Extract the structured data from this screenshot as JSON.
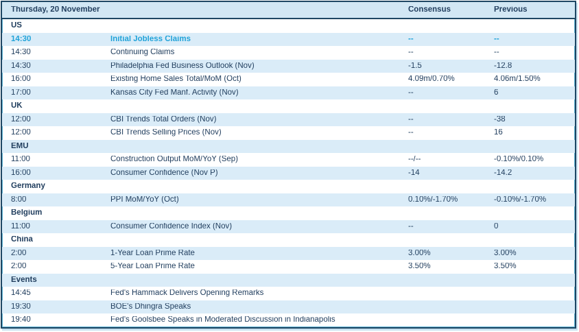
{
  "header": {
    "date_label": "Thursday, 20 November",
    "consensus_label": "Consensus",
    "previous_label": "Previous"
  },
  "colors": {
    "border": "#1e4663",
    "accent_inner_border": "#5fb5d6",
    "header_bg": "#d2e7f4",
    "alt_row_bg": "#daecf8",
    "white_row_bg": "#ffffff",
    "text": "#223f5f",
    "highlight_text": "#22a3d9",
    "shadow": "#c9e2f1"
  },
  "sections": [
    {
      "name": "US",
      "rows": [
        {
          "time": "14:30",
          "event": "Initial Jobless Claims",
          "consensus": "--",
          "previous": "--",
          "highlight": true
        },
        {
          "time": "14:30",
          "event": "Continuing Claims",
          "consensus": "--",
          "previous": "--"
        },
        {
          "time": "14:30",
          "event": "Philadelphia Fed Business Outlook (Nov)",
          "consensus": "-1.5",
          "previous": "-12.8"
        },
        {
          "time": "16:00",
          "event": "Existing Home Sales Total/MoM (Oct)",
          "consensus": "4.09m/0.70%",
          "previous": "4.06m/1.50%"
        },
        {
          "time": "17:00",
          "event": "Kansas City Fed Manf. Activity (Nov)",
          "consensus": "--",
          "previous": "6"
        }
      ]
    },
    {
      "name": "UK",
      "rows": [
        {
          "time": "12:00",
          "event": "CBI Trends Total Orders (Nov)",
          "consensus": "--",
          "previous": "-38"
        },
        {
          "time": "12:00",
          "event": "CBI Trends Selling Prices (Nov)",
          "consensus": "--",
          "previous": "16"
        }
      ]
    },
    {
      "name": "EMU",
      "rows": [
        {
          "time": "11:00",
          "event": "Construction Output MoM/YoY (Sep)",
          "consensus": "--/--",
          "previous": "-0.10%/0.10%"
        },
        {
          "time": "16:00",
          "event": "Consumer Confidence (Nov P)",
          "consensus": "-14",
          "previous": "-14.2"
        }
      ]
    },
    {
      "name": "Germany",
      "rows": [
        {
          "time": "8:00",
          "event": "PPI MoM/YoY (Oct)",
          "consensus": "0.10%/-1.70%",
          "previous": "-0.10%/-1.70%"
        }
      ]
    },
    {
      "name": "Belgium",
      "rows": [
        {
          "time": "11:00",
          "event": "Consumer Confidence Index (Nov)",
          "consensus": "--",
          "previous": "0"
        }
      ]
    },
    {
      "name": "China",
      "rows": [
        {
          "time": "2:00",
          "event": "1-Year Loan Prime Rate",
          "consensus": "3.00%",
          "previous": "3.00%"
        },
        {
          "time": "2:00",
          "event": "5-Year Loan Prime Rate",
          "consensus": "3.50%",
          "previous": "3.50%"
        }
      ]
    },
    {
      "name": "Events",
      "rows": [
        {
          "time": "14:45",
          "event": "Fed's Hammack Delivers Opening Remarks",
          "consensus": "",
          "previous": ""
        },
        {
          "time": "19:30",
          "event": "BOE's Dhingra Speaks",
          "consensus": "",
          "previous": ""
        },
        {
          "time": "19:40",
          "event": "Fed's Goolsbee Speaks in Moderated Discussion in Indianapolis",
          "consensus": "",
          "previous": ""
        }
      ]
    }
  ]
}
